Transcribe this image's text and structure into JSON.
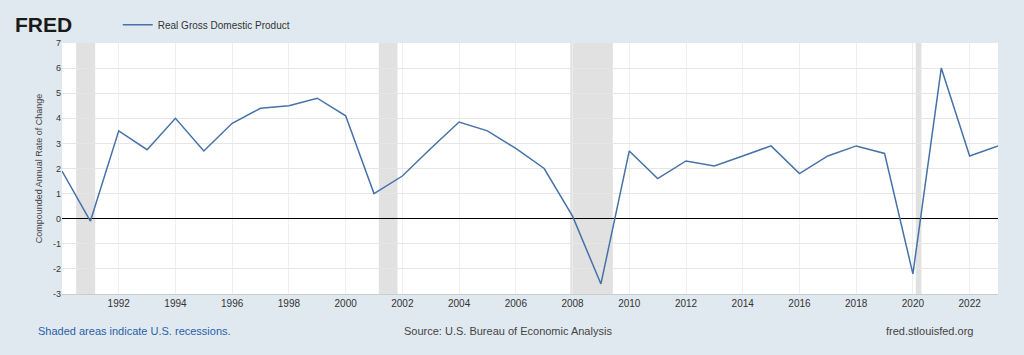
{
  "chart_data": {
    "type": "line",
    "ylabel": "Compounded Annual Rate of Change",
    "annotations": [
      "FRED",
      "Shaded areas indicate U.S. recessions.",
      "Source: U.S. Bureau of Economic Analysis",
      "fred.stlouisfed.org"
    ],
    "x": [
      1990,
      1991,
      1992,
      1993,
      1994,
      1995,
      1996,
      1997,
      1998,
      1999,
      2000,
      2001,
      2002,
      2003,
      2004,
      2005,
      2006,
      2007,
      2008,
      2009,
      2010,
      2011,
      2012,
      2013,
      2014,
      2015,
      2016,
      2017,
      2018,
      2019,
      2020,
      2021,
      2022,
      2023
    ],
    "series": [
      {
        "name": "Real Gross Domestic Product",
        "color": "#4572a7",
        "values": [
          1.9,
          -0.1,
          3.5,
          2.75,
          4.0,
          2.7,
          3.8,
          4.4,
          4.5,
          4.8,
          4.1,
          1.0,
          1.7,
          2.8,
          3.85,
          3.5,
          2.8,
          2.0,
          0.1,
          -2.6,
          2.7,
          1.6,
          2.3,
          2.1,
          2.5,
          2.9,
          1.8,
          2.5,
          2.9,
          2.6,
          -2.2,
          6.0,
          2.5,
          2.9
        ]
      }
    ],
    "recessions": [
      {
        "start": 1990.5,
        "end": 1991.17
      },
      {
        "start": 2001.17,
        "end": 2001.83
      },
      {
        "start": 2007.92,
        "end": 2009.42
      },
      {
        "start": 2020.1,
        "end": 2020.3
      }
    ],
    "xlim": [
      1990,
      2023
    ],
    "xticks": [
      1992,
      1994,
      1996,
      1998,
      2000,
      2002,
      2004,
      2006,
      2008,
      2010,
      2012,
      2014,
      2016,
      2018,
      2020,
      2022
    ],
    "ylim": [
      -3,
      7
    ],
    "yticks": [
      -3,
      -2,
      -1,
      0,
      1,
      2,
      3,
      4,
      5,
      6,
      7
    ],
    "grid": true,
    "legend": "top left"
  }
}
